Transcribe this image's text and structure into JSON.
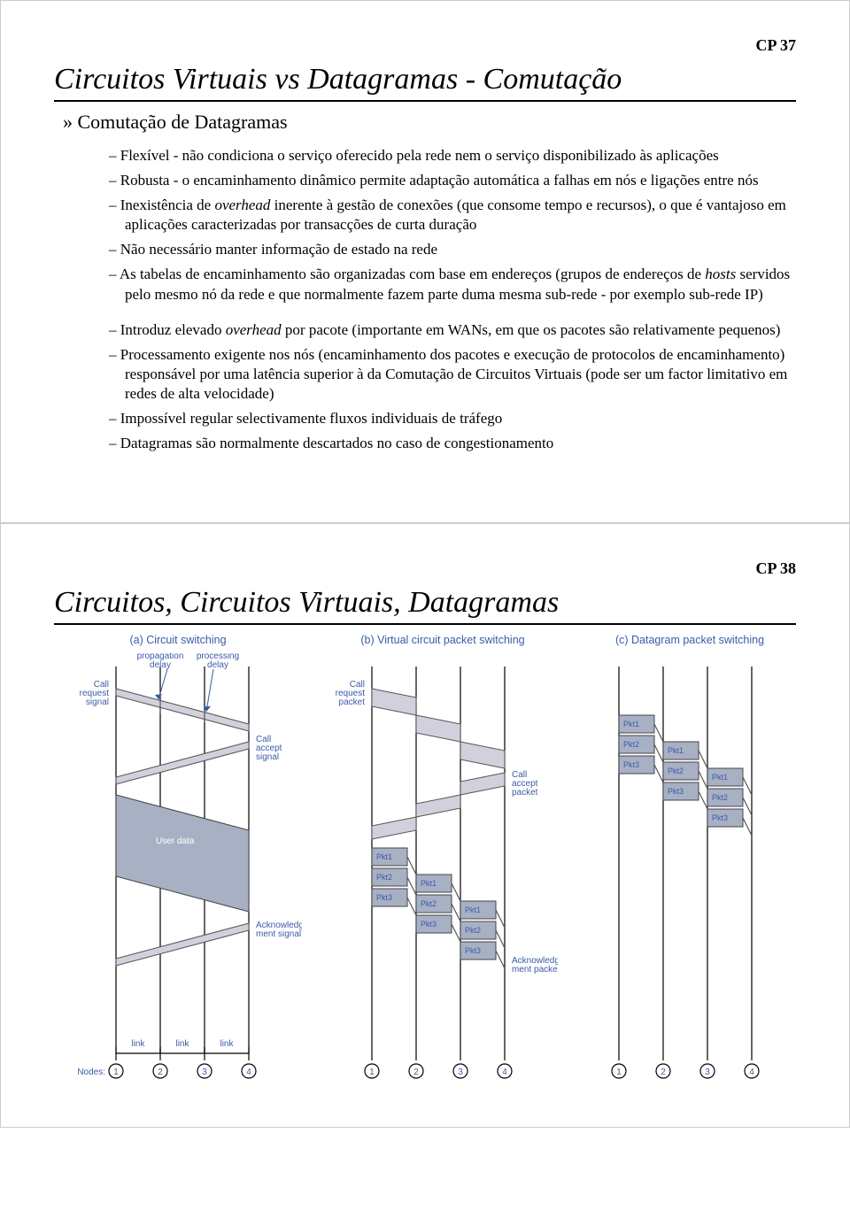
{
  "slide37": {
    "page_label": "CP 37",
    "title": "Circuitos Virtuais vs Datagramas - Comutação",
    "subtitle": "Comutação de Datagramas",
    "pros": [
      "Flexível - não condiciona o serviço oferecido pela rede nem o serviço disponibilizado às aplicações",
      "Robusta - o encaminhamento dinâmico permite adaptação automática a falhas em nós e ligações entre nós",
      "Inexistência de <span class='italic'>overhead</span> inerente à gestão de conexões (que consome tempo e recursos), o que é vantajoso em aplicações caracterizadas por transacções de curta duração",
      "Não necessário manter informação de estado na rede",
      "As tabelas de encaminhamento são organizadas com base em endereços (grupos de endereços de <span class='italic'>hosts</span> servidos pelo mesmo nó da rede e que normalmente fazem parte duma mesma sub-rede - por exemplo sub-rede IP)"
    ],
    "cons": [
      "Introduz elevado <span class='italic'>overhead</span> por pacote (importante em WANs, em que os pacotes são relativamente pequenos)",
      "Processamento exigente nos nós (encaminhamento dos pacotes e execução de protocolos de encaminhamento) responsável por uma latência superior à da Comutação de Circuitos Virtuais (pode ser um factor limitativo em redes de alta velocidade)",
      "Impossível regular selectivamente fluxos individuais de tráfego",
      "Datagramas são normalmente descartados no caso de congestionamento"
    ]
  },
  "slide38": {
    "page_label": "CP 38",
    "title": "Circuitos, Circuitos Virtuais, Datagramas",
    "panels": {
      "a": {
        "title": "(a) Circuit switching",
        "labels": {
          "call_request": "Call\nrequest\nsignal",
          "prop_delay": "propagation\ndelay",
          "proc_delay": "processing\ndelay",
          "call_accept": "Call\naccept\nsignal",
          "user_data": "User data",
          "ack": "Acknowledge-\nment signal",
          "link": "link",
          "nodes_label": "Nodes:"
        },
        "nodes": [
          "1",
          "2",
          "3",
          "4"
        ]
      },
      "b": {
        "title": "(b) Virtual circuit packet switching",
        "labels": {
          "call_request": "Call\nrequest\npacket",
          "call_accept": "Call\naccept\npacket",
          "ack": "Acknowledge-\nment packet"
        },
        "packets": [
          "Pkt1",
          "Pkt2",
          "Pkt3"
        ],
        "nodes": [
          "1",
          "2",
          "3",
          "4"
        ]
      },
      "c": {
        "title": "(c) Datagram packet switching",
        "packets": [
          "Pkt1",
          "Pkt2",
          "Pkt3"
        ],
        "nodes": [
          "1",
          "2",
          "3",
          "4"
        ]
      }
    },
    "colors": {
      "label_color": "#3b5ba8",
      "fill_color": "#a8b0c4",
      "band_color": "#d1d1de",
      "axis_color": "#000000"
    }
  }
}
